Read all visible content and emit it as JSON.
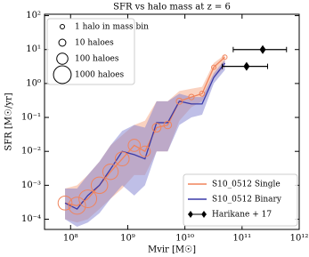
{
  "chart_data": {
    "type": "line",
    "title": "SFR vs halo mass at z = 6",
    "xlabel": "Mvir [M☉]",
    "ylabel": "SFR [M☉/yr]",
    "xscale": "log",
    "yscale": "log",
    "xlim": [
      35000000,
      1000000000000
    ],
    "ylim": [
      5e-05,
      110
    ],
    "xticks": [
      {
        "value": 100000000,
        "label": "10⁸"
      },
      {
        "value": 1000000000,
        "label": "10⁹"
      },
      {
        "value": 10000000000,
        "label": "10¹⁰"
      },
      {
        "value": 100000000000,
        "label": "10¹¹"
      },
      {
        "value": 1000000000000,
        "label": "10¹²"
      }
    ],
    "yticks": [
      {
        "value": 0.0001,
        "label": "10⁻⁴"
      },
      {
        "value": 0.001,
        "label": "10⁻³"
      },
      {
        "value": 0.01,
        "label": "10⁻²"
      },
      {
        "value": 0.1,
        "label": "10⁻¹"
      },
      {
        "value": 1,
        "label": "10⁰"
      },
      {
        "value": 10,
        "label": "10¹"
      },
      {
        "value": 100,
        "label": "10²"
      }
    ],
    "x": [
      80000000,
      130000000,
      200000000,
      320000000,
      500000000,
      800000000,
      1300000000,
      2000000000,
      3200000000,
      5000000000,
      8000000000,
      13000000000,
      20000000000,
      32000000000,
      50000000000
    ],
    "series": [
      {
        "name": "S10_0512 Single",
        "color": "#f0845c",
        "band_color": "#f5a582",
        "values": [
          0.0003,
          0.00025,
          0.0004,
          0.001,
          0.0025,
          0.006,
          0.015,
          0.01,
          0.05,
          0.06,
          0.3,
          0.4,
          0.5,
          3,
          6
        ],
        "lower": [
          0.0001,
          8e-05,
          0.0001,
          0.0002,
          0.0004,
          0.0008,
          0.002,
          0.002,
          0.01,
          0.01,
          0.08,
          0.2,
          0.3,
          1.5,
          3
        ],
        "upper": [
          0.0008,
          0.001,
          0.002,
          0.005,
          0.015,
          0.03,
          0.06,
          0.08,
          0.3,
          0.3,
          0.6,
          0.7,
          0.8,
          4,
          7
        ],
        "halo_counts": [
          300,
          800,
          1000,
          700,
          500,
          300,
          150,
          80,
          30,
          15,
          5,
          3,
          2,
          1,
          1
        ]
      },
      {
        "name": "S10_0512 Binary",
        "color": "#3a3aa8",
        "band_color": "#7f7fcf",
        "values": [
          0.0003,
          0.0002,
          0.0005,
          0.001,
          0.003,
          0.01,
          0.008,
          0.006,
          0.07,
          0.07,
          0.3,
          0.25,
          0.25,
          1.5,
          4
        ],
        "lower": [
          0.0001,
          6e-05,
          8e-05,
          0.00015,
          0.0004,
          0.001,
          0.0005,
          0.001,
          0.01,
          0.01,
          0.06,
          0.1,
          0.12,
          1,
          2.5
        ],
        "upper": [
          0.0008,
          0.0008,
          0.002,
          0.005,
          0.015,
          0.04,
          0.06,
          0.05,
          0.3,
          0.3,
          0.5,
          0.4,
          0.4,
          2,
          5
        ]
      }
    ],
    "observations": {
      "name": "Harikane + 17",
      "color": "#000000",
      "x": [
        230000000000,
        120000000000
      ],
      "xlow": [
        70000000000,
        45000000000
      ],
      "xhigh": [
        600000000000,
        280000000000
      ],
      "values": [
        10,
        3.2
      ]
    },
    "size_legend": [
      {
        "count": 1,
        "label": "1 halo in mass bin"
      },
      {
        "count": 10,
        "label": "10 haloes"
      },
      {
        "count": 100,
        "label": "100 haloes"
      },
      {
        "count": 1000,
        "label": "1000 haloes"
      }
    ]
  }
}
